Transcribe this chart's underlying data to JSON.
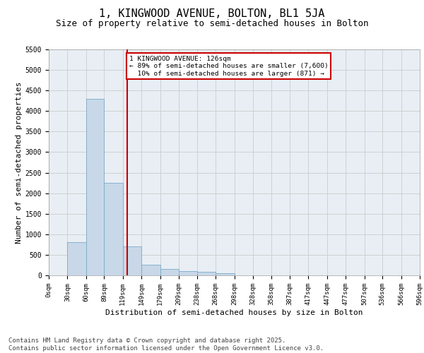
{
  "title": "1, KINGWOOD AVENUE, BOLTON, BL1 5JA",
  "subtitle": "Size of property relative to semi-detached houses in Bolton",
  "xlabel": "Distribution of semi-detached houses by size in Bolton",
  "ylabel": "Number of semi-detached properties",
  "bar_left_edges": [
    0,
    30,
    60,
    89,
    119,
    149,
    179,
    209,
    238,
    268,
    298,
    328,
    358,
    387,
    417,
    447,
    477,
    507,
    536,
    566
  ],
  "bar_heights": [
    5,
    800,
    4300,
    2250,
    700,
    250,
    150,
    100,
    80,
    50,
    5,
    2,
    1,
    0,
    0,
    0,
    0,
    0,
    0,
    0
  ],
  "bar_widths": [
    30,
    30,
    29,
    30,
    30,
    30,
    30,
    29,
    30,
    30,
    30,
    30,
    29,
    30,
    30,
    30,
    30,
    29,
    30,
    30
  ],
  "bar_color": "#c8d8e8",
  "bar_edgecolor": "#7aaac8",
  "grid_color": "#cccccc",
  "background_color": "#e8eef4",
  "vline_x": 126,
  "vline_color": "#cc0000",
  "annotation_text": "1 KINGWOOD AVENUE: 126sqm\n← 89% of semi-detached houses are smaller (7,600)\n  10% of semi-detached houses are larger (871) →",
  "annotation_box_color": "#cc0000",
  "ylim": [
    0,
    5500
  ],
  "xlim": [
    0,
    596
  ],
  "tick_labels": [
    "0sqm",
    "30sqm",
    "60sqm",
    "89sqm",
    "119sqm",
    "149sqm",
    "179sqm",
    "209sqm",
    "238sqm",
    "268sqm",
    "298sqm",
    "328sqm",
    "358sqm",
    "387sqm",
    "417sqm",
    "447sqm",
    "477sqm",
    "507sqm",
    "536sqm",
    "566sqm",
    "596sqm"
  ],
  "tick_positions": [
    0,
    30,
    60,
    89,
    119,
    149,
    179,
    209,
    238,
    268,
    298,
    328,
    358,
    387,
    417,
    447,
    477,
    507,
    536,
    566,
    596
  ],
  "footer_text": "Contains HM Land Registry data © Crown copyright and database right 2025.\nContains public sector information licensed under the Open Government Licence v3.0.",
  "title_fontsize": 11,
  "subtitle_fontsize": 9,
  "label_fontsize": 8,
  "tick_fontsize": 6.5,
  "footer_fontsize": 6.5,
  "yticks": [
    0,
    500,
    1000,
    1500,
    2000,
    2500,
    3000,
    3500,
    4000,
    4500,
    5000,
    5500
  ]
}
